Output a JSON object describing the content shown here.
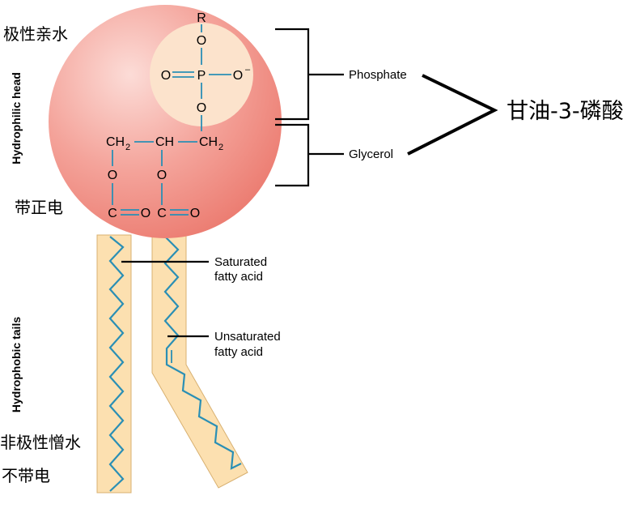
{
  "labels": {
    "hydrophilic_cn": "极性亲水",
    "positive_cn": "带正电",
    "nonpolar_cn": "非极性憎水",
    "uncharged_cn": "不带电",
    "compound_cn": "甘油-3-磷酸",
    "hydrophilic_head": "Hydrophilic head",
    "hydrophobic_tails": "Hydrophobic tails",
    "phosphate": "Phosphate",
    "glycerol": "Glycerol",
    "saturated_line1": "Saturated",
    "saturated_line2": "fatty acid",
    "unsaturated_line1": "Unsaturated",
    "unsaturated_line2": "fatty acid"
  },
  "atoms": {
    "r": "R",
    "o_top": "O",
    "o_left": "O",
    "p": "P",
    "o_right": "O",
    "minus": "–",
    "o_bottom": "O",
    "ch2_left_c": "CH",
    "ch2_left_sub": "2",
    "ch_mid": "CH",
    "ch2_right_c": "CH",
    "ch2_right_sub": "2",
    "o_ester_left": "O",
    "o_ester_right": "O",
    "c_left": "C",
    "o_carbonyl_left": "O",
    "c_right": "C",
    "o_carbonyl_right": "O"
  },
  "colors": {
    "head_light": "#fad0cc",
    "head_dark": "#ee8479",
    "phosphate_circle": "#fce3cc",
    "tail_fill": "#fce0b0",
    "tail_stroke": "#d8b070",
    "bond": "#2a8fb5"
  }
}
